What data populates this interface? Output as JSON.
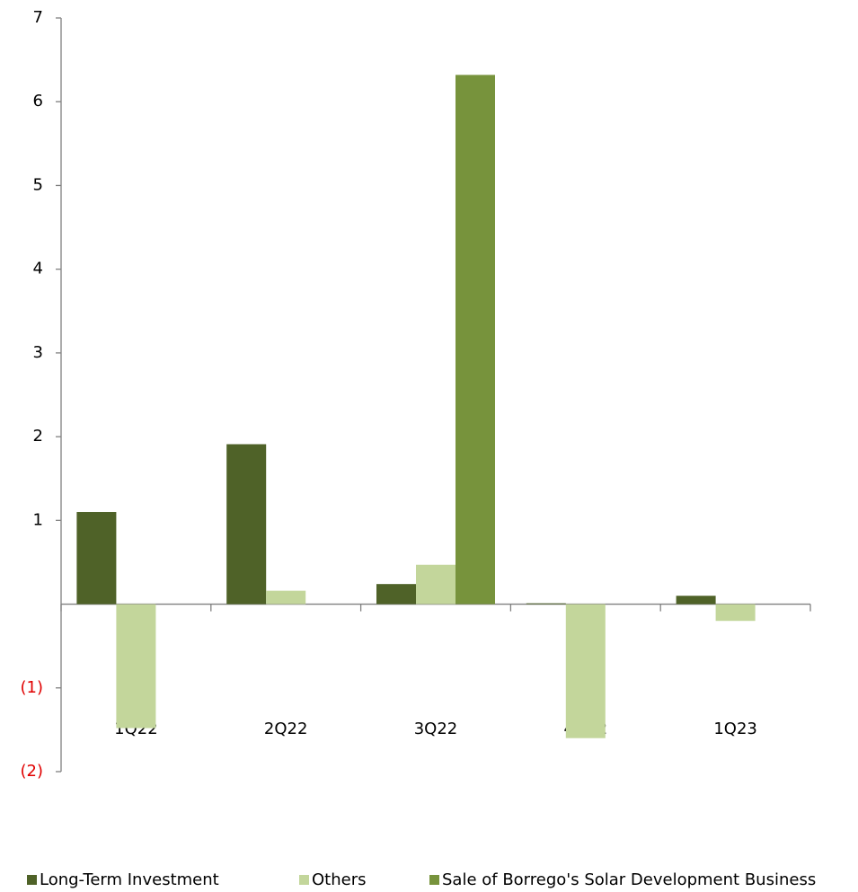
{
  "chart_data": {
    "type": "bar",
    "categories": [
      "1Q22",
      "2Q22",
      "3Q22",
      "4Q22",
      "1Q23"
    ],
    "series": [
      {
        "name": "Long-Term Investment",
        "color": "#4f6228",
        "values": [
          1.1,
          1.91,
          0.24,
          0.01,
          0.1
        ]
      },
      {
        "name": "Others",
        "color": "#c3d69b",
        "values": [
          -1.48,
          0.16,
          0.47,
          -1.6,
          -0.2
        ]
      },
      {
        "name": "Sale of Borrego's Solar Development Business",
        "color": "#77933c",
        "values": [
          null,
          null,
          6.32,
          null,
          null
        ]
      }
    ],
    "ylim": [
      -2,
      7
    ],
    "yticks": [
      {
        "value": -2,
        "label": "(2)"
      },
      {
        "value": -1,
        "label": "(1)"
      },
      1,
      2,
      3,
      4,
      5,
      6,
      7
    ],
    "legend": "bottom"
  }
}
